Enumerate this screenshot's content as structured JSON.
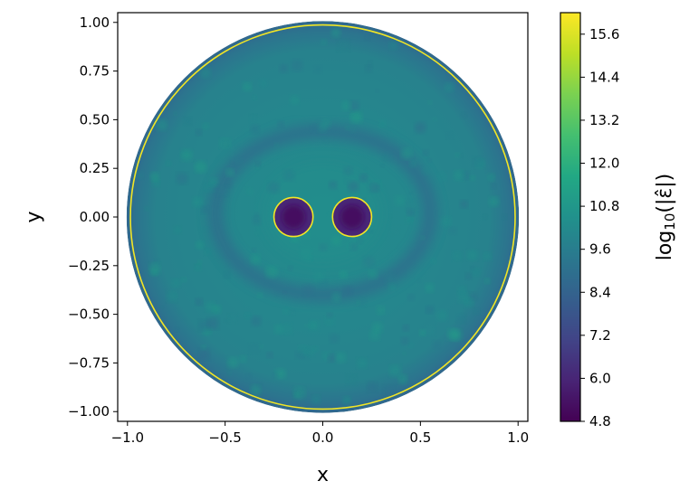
{
  "chart_data": {
    "type": "heatmap",
    "xlabel": "x",
    "ylabel": "y",
    "xlim": [
      -1.05,
      1.05
    ],
    "ylim": [
      -1.05,
      1.05
    ],
    "xticks": [
      -1.0,
      -0.5,
      0.0,
      0.5,
      1.0
    ],
    "xtick_labels": [
      "−1.0",
      "−0.5",
      "0.0",
      "0.5",
      "1.0"
    ],
    "yticks": [
      1.0,
      0.75,
      0.5,
      0.25,
      0.0,
      -0.25,
      -0.5,
      -0.75,
      -1.0
    ],
    "ytick_labels": [
      "1.00",
      "0.75",
      "0.50",
      "0.25",
      "0.00",
      "−0.25",
      "−0.50",
      "−0.75",
      "−1.00"
    ],
    "colorbar": {
      "label_prefix": "log",
      "label_subscript": "10",
      "label_suffix": "(|ε̂|)",
      "min": 4.8,
      "max": 16.2,
      "ticks": [
        4.8,
        6.0,
        7.2,
        8.4,
        9.6,
        10.8,
        12.0,
        13.2,
        14.4,
        15.6
      ],
      "tick_labels": [
        "4.8",
        "6.0",
        "7.2",
        "8.4",
        "9.6",
        "10.8",
        "12.0",
        "13.2",
        "14.4",
        "15.6"
      ],
      "colormap": "viridis"
    },
    "domain": {
      "shape": "disk",
      "outer_radius": 1.0,
      "boundary_circles": [
        {
          "cx": 0.0,
          "cy": 0.0,
          "r": 1.0
        },
        {
          "cx": -0.15,
          "cy": 0.0,
          "r": 0.1
        },
        {
          "cx": 0.15,
          "cy": 0.0,
          "r": 0.1
        }
      ],
      "boundary_value": 16.0,
      "background_value": 10.0,
      "rim_value": 8.6,
      "hole_value": 5.2,
      "ring_band": {
        "rx": 0.55,
        "ry": 0.42,
        "cy": 0.02,
        "value": 8.3
      }
    },
    "colors": {
      "boundary": "#fde725",
      "background_field": "#2a8c8c",
      "low": "#440154",
      "high": "#fde725"
    }
  }
}
